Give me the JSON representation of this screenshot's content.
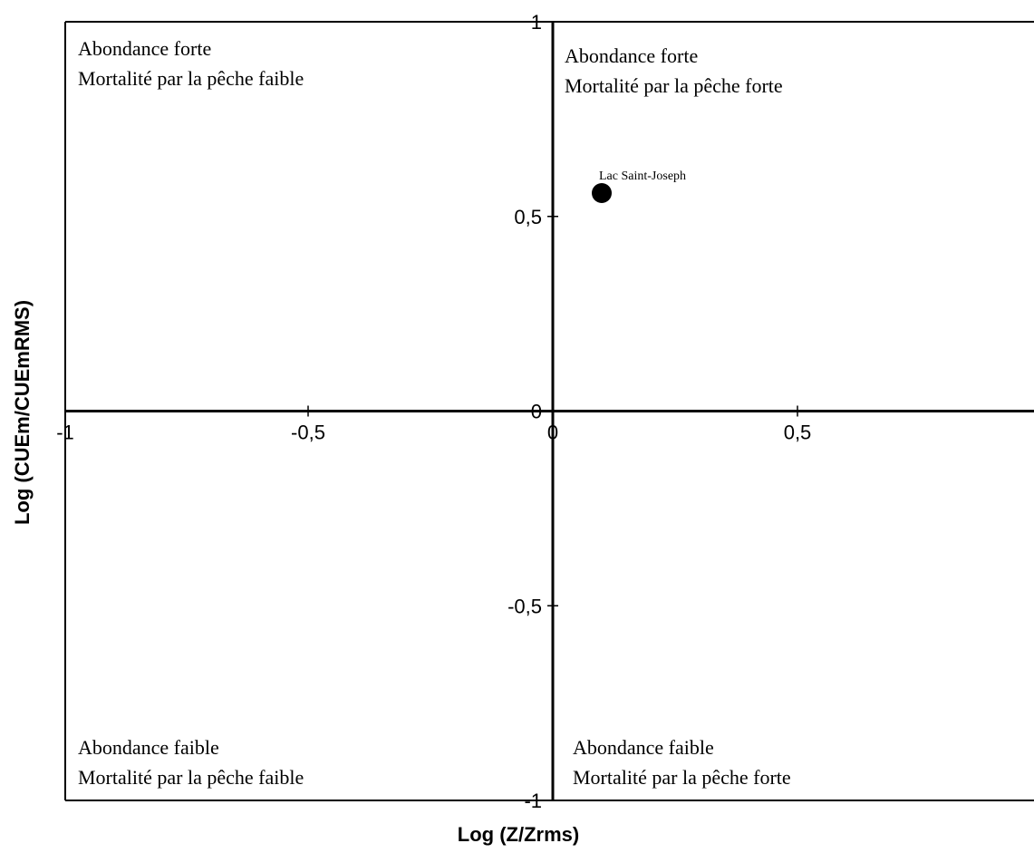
{
  "chart_data": {
    "type": "scatter",
    "xlabel": "Log (Z/Zrms)",
    "ylabel": "Log (CUEm/CUEmRMS)",
    "xlim": [
      -1,
      1
    ],
    "ylim": [
      -1,
      1
    ],
    "x_ticks": [
      {
        "value": -1,
        "label": "-1"
      },
      {
        "value": -0.5,
        "label": "-0,5"
      },
      {
        "value": 0,
        "label": "0"
      },
      {
        "value": 0.5,
        "label": "0,5"
      }
    ],
    "y_ticks": [
      {
        "value": 1,
        "label": "1"
      },
      {
        "value": 0.5,
        "label": "0,5"
      },
      {
        "value": 0,
        "label": "0"
      },
      {
        "value": -0.5,
        "label": "-0,5"
      },
      {
        "value": -1,
        "label": "-1"
      }
    ],
    "grid": false,
    "points": [
      {
        "x": 0.1,
        "y": 0.56,
        "label": "Lac Saint-Joseph"
      }
    ],
    "quadrants": {
      "top_left": {
        "line1": "Abondance forte",
        "line2": "Mortalité par la pêche faible"
      },
      "top_right": {
        "line1": "Abondance forte",
        "line2": "Mortalité par la pêche forte"
      },
      "bottom_left": {
        "line1": "Abondance faible",
        "line2": "Mortalité par la pêche faible"
      },
      "bottom_right": {
        "line1": "Abondance faible",
        "line2": "Mortalité par la pêche forte"
      }
    }
  }
}
